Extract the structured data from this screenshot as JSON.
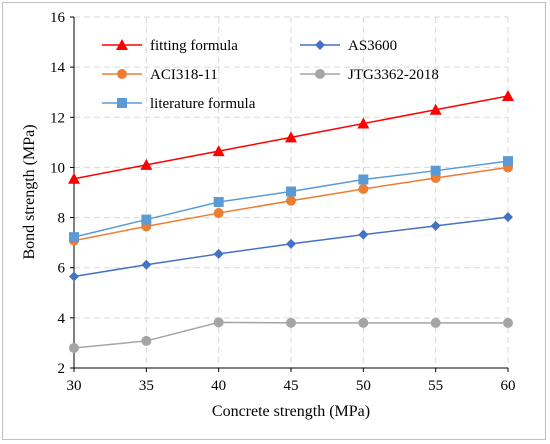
{
  "chart_data": {
    "type": "line",
    "xlabel": "Concrete strength (MPa)",
    "ylabel": "Bond strength (MPa)",
    "xlim": [
      30,
      60
    ],
    "ylim": [
      2,
      16
    ],
    "xticks": [
      30,
      35,
      40,
      45,
      50,
      55,
      60
    ],
    "yticks": [
      2,
      4,
      6,
      8,
      10,
      12,
      14,
      16
    ],
    "grid": true,
    "legend_position": "top-left inside",
    "x": [
      30,
      35,
      40,
      45,
      50,
      55,
      60
    ],
    "series": [
      {
        "name": "fitting formula",
        "color": "#ff0000",
        "marker": "triangle",
        "values": [
          9.55,
          10.1,
          10.65,
          11.2,
          11.75,
          12.3,
          12.85
        ]
      },
      {
        "name": "AS3600",
        "color": "#4472c4",
        "marker": "diamond",
        "values": [
          5.65,
          6.12,
          6.55,
          6.95,
          7.32,
          7.67,
          8.02
        ]
      },
      {
        "name": "ACI318-11",
        "color": "#ed7d31",
        "marker": "circle",
        "values": [
          7.08,
          7.65,
          8.18,
          8.67,
          9.14,
          9.58,
          10.0
        ]
      },
      {
        "name": "JTG3362-2018",
        "color": "#a5a5a5",
        "marker": "circle",
        "values": [
          2.8,
          3.08,
          3.82,
          3.8,
          3.8,
          3.8,
          3.8
        ]
      },
      {
        "name": "literature formula",
        "color": "#5b9bd5",
        "marker": "square",
        "values": [
          7.22,
          7.92,
          8.62,
          9.04,
          9.52,
          9.87,
          10.25
        ]
      }
    ]
  }
}
